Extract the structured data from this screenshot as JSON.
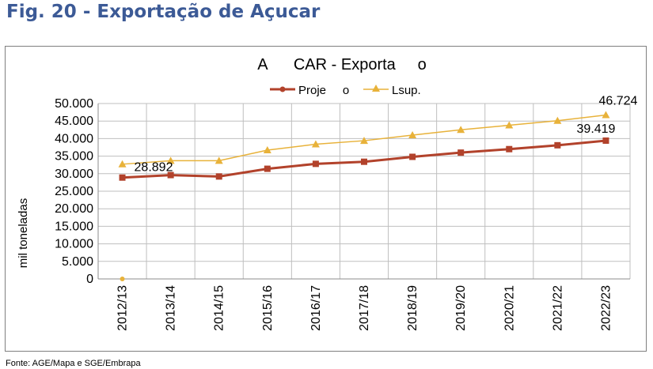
{
  "figure_title": "Fig. 20 - Exportação de  Açucar",
  "source_note": "Fonte: AGE/Mapa e SGE/Embrapa",
  "colors": {
    "title": "#3c5a96",
    "projecao": "#b2422b",
    "lsup": "#e8b23a",
    "grid": "#bfbfbf"
  },
  "chart_data": {
    "type": "line",
    "title": "A      CAR - Exporta     o",
    "xlabel": "",
    "ylabel": "mil toneladas",
    "categories": [
      "2012/13",
      "2013/14",
      "2014/15",
      "2015/16",
      "2016/17",
      "2017/18",
      "2018/19",
      "2019/20",
      "2020/21",
      "2021/22",
      "2022/23"
    ],
    "ylim": [
      0,
      50000
    ],
    "y_ticks": [
      "0",
      "5.000",
      "10.000",
      "15.000",
      "20.000",
      "25.000",
      "30.000",
      "35.000",
      "40.000",
      "45.000",
      "50.000"
    ],
    "grid": true,
    "legend_position": "top",
    "series": [
      {
        "name": "Proje     o",
        "marker": "square",
        "values": [
          28892,
          29600,
          29200,
          31400,
          32800,
          33400,
          34800,
          36000,
          37000,
          38100,
          39419
        ]
      },
      {
        "name": "Lsup.",
        "marker": "triangle",
        "values": [
          0,
          33700,
          33700,
          36700,
          38400,
          39400,
          41000,
          42500,
          43800,
          45100,
          46724
        ]
      }
    ],
    "annotations": [
      "28.892",
      "39.419",
      "46.724"
    ]
  }
}
